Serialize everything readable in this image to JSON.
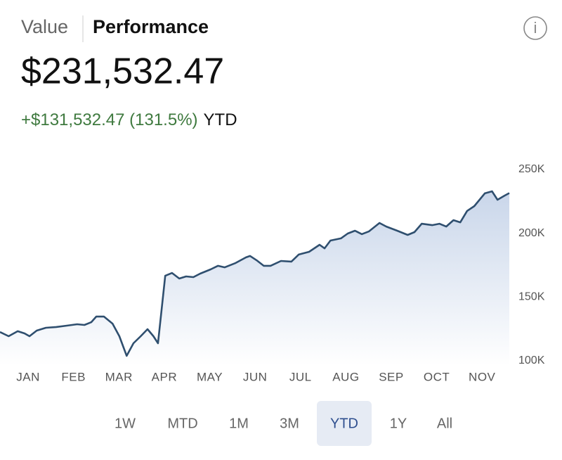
{
  "header": {
    "tabs": [
      "Value",
      "Performance"
    ],
    "active_tab": 1,
    "info": "i",
    "value": "$231,532.47",
    "change": "+$131,532.47 (131.5%)",
    "period": "YTD"
  },
  "chart_data": {
    "type": "line",
    "color": "#2f4f6f",
    "x": [
      -0.62,
      -0.43,
      -0.23,
      -0.08,
      0.03,
      0.19,
      0.39,
      0.62,
      0.85,
      1.08,
      1.24,
      1.39,
      1.5,
      1.67,
      1.86,
      2.01,
      2.17,
      2.32,
      2.48,
      2.63,
      2.76,
      2.86,
      3.02,
      3.17,
      3.33,
      3.48,
      3.64,
      3.79,
      4.02,
      4.18,
      4.33,
      4.57,
      4.8,
      4.89,
      5.03,
      5.19,
      5.34,
      5.57,
      5.8,
      5.96,
      6.19,
      6.42,
      6.53,
      6.66,
      6.89,
      7.04,
      7.2,
      7.35,
      7.51,
      7.74,
      7.89,
      8.13,
      8.36,
      8.51,
      8.67,
      8.9,
      9.06,
      9.21,
      9.37,
      9.52,
      9.67,
      9.83,
      10.06,
      10.22,
      10.34,
      10.5,
      10.6
    ],
    "values": [
      122600,
      119300,
      123200,
      121500,
      119300,
      123700,
      125900,
      126500,
      127600,
      128700,
      128100,
      130300,
      134700,
      134700,
      129200,
      119300,
      103900,
      113800,
      119300,
      124800,
      119300,
      113800,
      166700,
      168900,
      164500,
      166200,
      165600,
      168400,
      171700,
      174500,
      173300,
      176700,
      181100,
      182200,
      178900,
      174500,
      174500,
      178300,
      177800,
      183300,
      185500,
      191000,
      188200,
      194300,
      196000,
      199800,
      202000,
      199300,
      201500,
      208100,
      205300,
      202000,
      198700,
      200900,
      207500,
      206400,
      207500,
      205300,
      210300,
      208600,
      217500,
      221300,
      231300,
      232900,
      226300,
      229600,
      231500
    ],
    "xlim": [
      -0.62,
      10.6
    ],
    "xticks": [
      {
        "value": 0,
        "label": "JAN"
      },
      {
        "value": 1,
        "label": "FEB"
      },
      {
        "value": 2,
        "label": "MAR"
      },
      {
        "value": 3,
        "label": "APR"
      },
      {
        "value": 4,
        "label": "MAY"
      },
      {
        "value": 5,
        "label": "JUN"
      },
      {
        "value": 6,
        "label": "JUL"
      },
      {
        "value": 7,
        "label": "AUG"
      },
      {
        "value": 8,
        "label": "SEP"
      },
      {
        "value": 9,
        "label": "OCT"
      },
      {
        "value": 10,
        "label": "NOV"
      }
    ],
    "ylim": [
      100000,
      250000
    ],
    "yticks": [
      {
        "value": 100000,
        "label": "100K"
      },
      {
        "value": 150000,
        "label": "150K"
      },
      {
        "value": 200000,
        "label": "200K"
      },
      {
        "value": 250000,
        "label": "250K"
      }
    ]
  },
  "ranges": [
    "1W",
    "MTD",
    "1M",
    "3M",
    "YTD",
    "1Y",
    "All"
  ],
  "selected_range": 4
}
